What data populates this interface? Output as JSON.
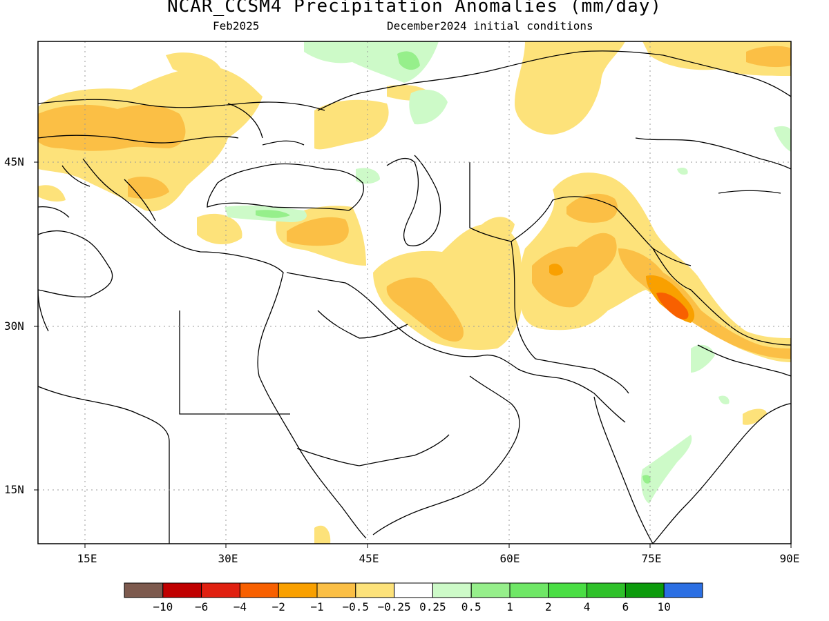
{
  "title": "NCAR_CCSM4 Precipitation Anomalies (mm/day)",
  "subtitle_left": "Feb2025",
  "subtitle_right": "December2024 initial conditions",
  "lat_labels": [
    "45N",
    "30N",
    "15N"
  ],
  "lon_labels": [
    "15E",
    "30E",
    "45E",
    "60E",
    "75E",
    "90E"
  ],
  "colorbar": {
    "labels": [
      "−10",
      "−6",
      "−4",
      "−2",
      "−1",
      "−0.5",
      "−0.25",
      "0.25",
      "0.5",
      "1",
      "2",
      "4",
      "6",
      "10"
    ],
    "colors": [
      "#7d5a4e",
      "#c00000",
      "#e02010",
      "#f86000",
      "#f9a000",
      "#fbbf45",
      "#fde27a",
      "#ffffff",
      "#cdfac8",
      "#96ef8b",
      "#6fe766",
      "#4ade44",
      "#2fc12a",
      "#0c9b0c",
      "#2b6fe3"
    ]
  },
  "map_extent": {
    "lon": [
      10,
      90
    ],
    "lat": [
      10,
      57
    ]
  }
}
